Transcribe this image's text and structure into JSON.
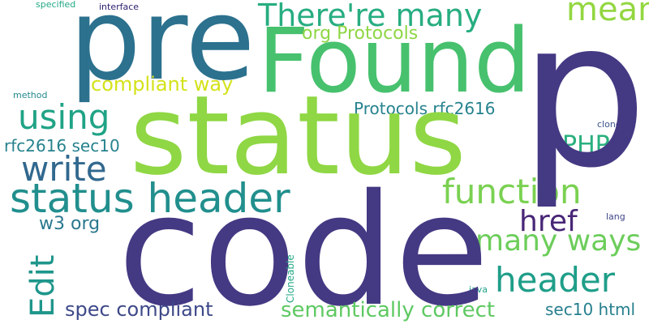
{
  "background": "#ffffff",
  "words": {
    "p": {
      "text": "p",
      "color": "#443983"
    },
    "code": {
      "text": "code",
      "color": "#443983"
    },
    "status": {
      "text": "status",
      "color": "#8fd744"
    },
    "pre": {
      "text": "pre",
      "color": "#2c718e"
    },
    "found": {
      "text": "Found",
      "color": "#47c16e"
    },
    "status_header": {
      "text": "status header",
      "color": "#218f8d"
    },
    "theres_many": {
      "text": "There're many",
      "color": "#27ad81"
    },
    "mean": {
      "text": "mean",
      "color": "#93d741"
    },
    "org_protocols": {
      "text": "org Protocols",
      "color": "#8ed645"
    },
    "compliant_way": {
      "text": "compliant way",
      "color": "#d4e21a"
    },
    "using": {
      "text": "using",
      "color": "#20a386"
    },
    "protocols_rfc": {
      "text": "Protocols rfc2616",
      "color": "#26828e"
    },
    "rfc_sec10": {
      "text": "rfc2616 sec10",
      "color": "#26828e"
    },
    "write": {
      "text": "write",
      "color": "#31688e"
    },
    "php": {
      "text": "PHP",
      "color": "#2ab07f"
    },
    "function": {
      "text": "function",
      "color": "#7ad151"
    },
    "href": {
      "text": "href",
      "color": "#482677"
    },
    "w3_org": {
      "text": "w3 org",
      "color": "#2a788e"
    },
    "many_ways": {
      "text": "many ways",
      "color": "#6ccd5a"
    },
    "header": {
      "text": "header",
      "color": "#1f9e89"
    },
    "edit": {
      "text": "Edit",
      "color": "#1f968b"
    },
    "spec_compliant": {
      "text": "spec compliant",
      "color": "#3e4989"
    },
    "semantically": {
      "text": "semantically correct",
      "color": "#5ec962"
    },
    "sec10_html": {
      "text": "sec10 html",
      "color": "#277f8e"
    },
    "specified": {
      "text": "specified",
      "color": "#22a884"
    },
    "interface": {
      "text": "interface",
      "color": "#2d1e6e"
    },
    "method": {
      "text": "method",
      "color": "#23898e"
    },
    "clone": {
      "text": "clone",
      "color": "#3b528b"
    },
    "lang": {
      "text": "lang",
      "color": "#404688"
    },
    "cloneable": {
      "text": "Cloneable",
      "color": "#22a884"
    },
    "java": {
      "text": "java",
      "color": "#1fa088"
    }
  }
}
